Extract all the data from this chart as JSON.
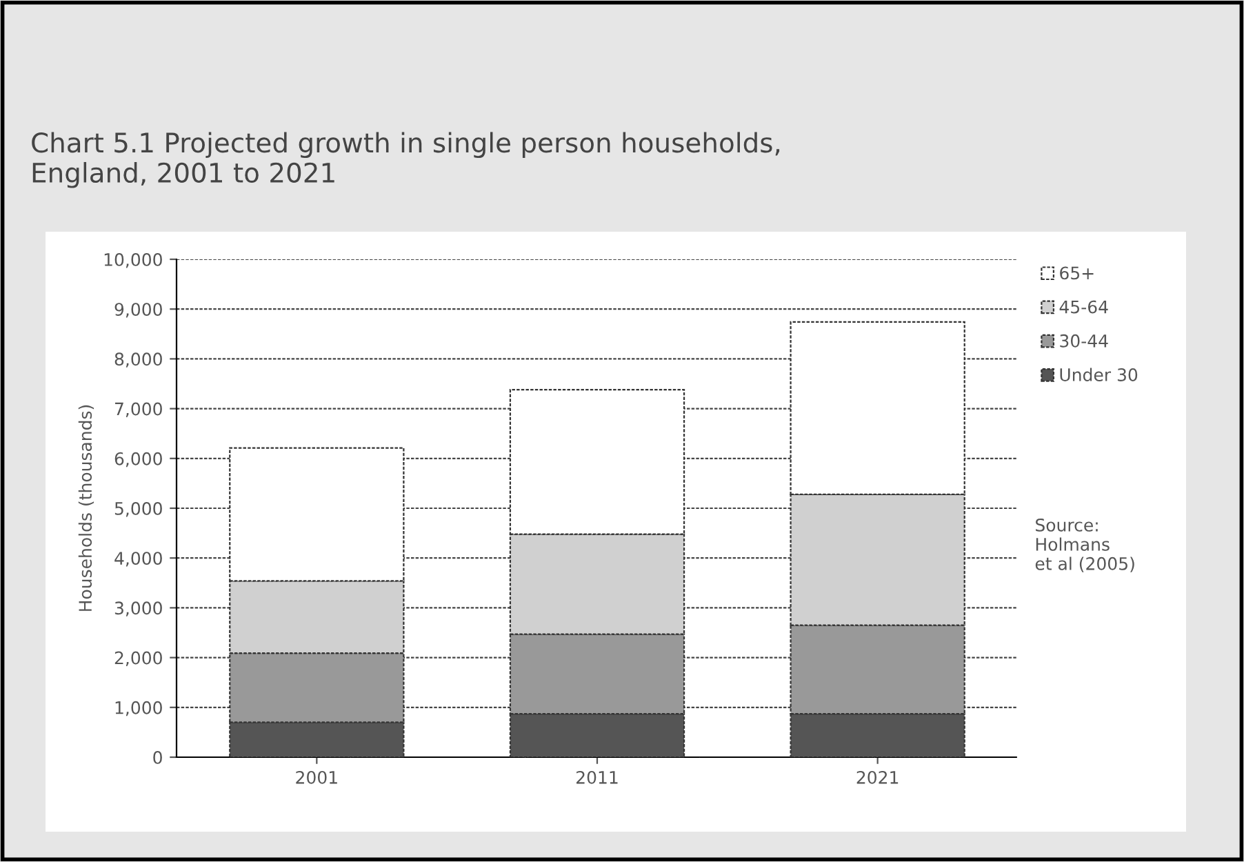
{
  "chart_data": {
    "type": "bar",
    "title": "Chart 5.1 Projected growth in single person households,\nEngland, 2001 to 2021",
    "ylabel": "Households (thousands)",
    "categories": [
      "2001",
      "2011",
      "2021"
    ],
    "stacked": true,
    "series": [
      {
        "name": "Under 30",
        "color": "#555555",
        "values": [
          700,
          870,
          870
        ]
      },
      {
        "name": "30-44",
        "color": "#999999",
        "values": [
          1390,
          1600,
          1780
        ]
      },
      {
        "name": "45-64",
        "color": "#d0d0d0",
        "values": [
          1450,
          2010,
          2630
        ]
      },
      {
        "name": "65+",
        "color": "#ffffff",
        "values": [
          2670,
          2900,
          3460
        ]
      }
    ],
    "ylim": [
      0,
      10000
    ],
    "yticks": [
      {
        "value": 0,
        "label": "0"
      },
      {
        "value": 1000,
        "label": "1,000"
      },
      {
        "value": 2000,
        "label": "2,000"
      },
      {
        "value": 3000,
        "label": "3,000"
      },
      {
        "value": 4000,
        "label": "4,000"
      },
      {
        "value": 5000,
        "label": "5,000"
      },
      {
        "value": 6000,
        "label": "6,000"
      },
      {
        "value": 7000,
        "label": "7,000"
      },
      {
        "value": 8000,
        "label": "8,000"
      },
      {
        "value": 9000,
        "label": "9,000"
      },
      {
        "value": 10000,
        "label": "10,000"
      }
    ],
    "grid": "y",
    "legend": "right",
    "annotations": [
      "Source:\nHolmans\net al (2005)"
    ]
  }
}
